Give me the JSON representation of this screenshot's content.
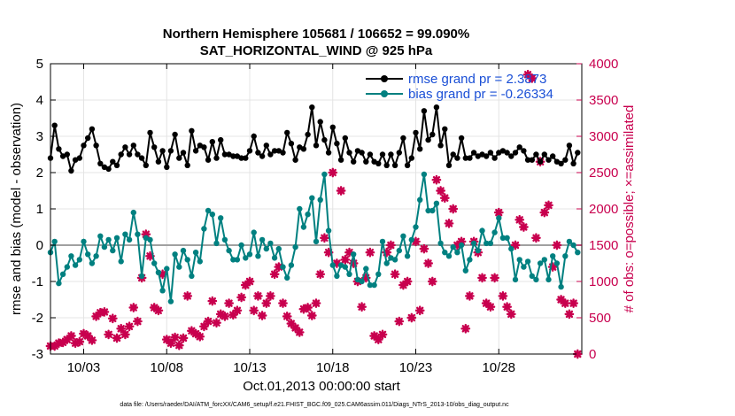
{
  "chart_data": {
    "type": "line",
    "title_line1": "Northern Hemisphere 105681 / 106652 = 99.090%",
    "title_line2": "SAT_HORIZONTAL_WIND @ 925 hPa",
    "xlabel": "Oct.01,2013 00:00:00 start",
    "ylabel": "rmse and bias (model - observation)",
    "ylabel_right": "# of obs: o=possible; ×=assimilated",
    "footer": "data file: /Users/raeder/DAI/ATM_forcXX/CAM6_setup/f.e21.FHIST_BGC.f09_025.CAM6assim.011/Diags_NTrS_2013-10/obs_diag_output.nc",
    "xlim": [
      1,
      33
    ],
    "ylim": [
      -3,
      5
    ],
    "ylim_right": [
      0,
      4000
    ],
    "x_ticks": [
      {
        "value": 3,
        "label": "10/03"
      },
      {
        "value": 8,
        "label": "10/08"
      },
      {
        "value": 13,
        "label": "10/13"
      },
      {
        "value": 18,
        "label": "10/18"
      },
      {
        "value": 23,
        "label": "10/23"
      },
      {
        "value": 28,
        "label": "10/28"
      }
    ],
    "y_ticks": [
      "-3",
      "-2",
      "-1",
      "0",
      "1",
      "2",
      "3",
      "4",
      "5"
    ],
    "y_ticks_right": [
      "0",
      "500",
      "1000",
      "1500",
      "2000",
      "2500",
      "3000",
      "3500",
      "4000"
    ],
    "grid": true,
    "legend_position": "top-right",
    "colors": {
      "rmse": "#000000",
      "bias": "#008080",
      "obs": "#c8004e",
      "zero_line": "#a0a0a0"
    },
    "series": [
      {
        "name": "rmse grand pr = 2.3873",
        "axis": "left",
        "x": [
          1.0,
          1.25,
          1.5,
          1.75,
          2.0,
          2.25,
          2.5,
          2.75,
          3.0,
          3.25,
          3.5,
          3.75,
          4.0,
          4.25,
          4.5,
          4.75,
          5.0,
          5.25,
          5.5,
          5.75,
          6.0,
          6.25,
          6.5,
          6.75,
          7.0,
          7.25,
          7.5,
          7.75,
          8.0,
          8.25,
          8.5,
          8.75,
          9.0,
          9.25,
          9.5,
          9.75,
          10.0,
          10.25,
          10.5,
          10.75,
          11.0,
          11.25,
          11.5,
          11.75,
          12.0,
          12.25,
          12.5,
          12.75,
          13.0,
          13.25,
          13.5,
          13.75,
          14.0,
          14.25,
          14.5,
          14.75,
          15.0,
          15.25,
          15.5,
          15.75,
          16.0,
          16.25,
          16.5,
          16.75,
          17.0,
          17.25,
          17.5,
          17.75,
          18.0,
          18.25,
          18.5,
          18.75,
          19.0,
          19.25,
          19.5,
          19.75,
          20.0,
          20.25,
          20.5,
          20.75,
          21.0,
          21.25,
          21.5,
          21.75,
          22.0,
          22.25,
          22.5,
          22.75,
          23.0,
          23.25,
          23.5,
          23.75,
          24.0,
          24.25,
          24.5,
          24.75,
          25.0,
          25.25,
          25.5,
          25.75,
          26.0,
          26.25,
          26.5,
          26.75,
          27.0,
          27.25,
          27.5,
          27.75,
          28.0,
          28.25,
          28.5,
          28.75,
          29.0,
          29.25,
          29.5,
          29.75,
          30.0,
          30.25,
          30.5,
          30.75,
          31.0,
          31.25,
          31.5,
          31.75,
          32.0,
          32.25,
          32.5,
          32.75
        ],
        "values": [
          2.4,
          3.3,
          2.65,
          2.45,
          2.5,
          2.05,
          2.35,
          2.4,
          2.75,
          2.95,
          3.2,
          2.75,
          2.25,
          2.15,
          2.1,
          2.3,
          2.2,
          2.5,
          2.7,
          2.5,
          2.75,
          2.5,
          2.4,
          2.2,
          3.1,
          2.7,
          2.3,
          2.6,
          2.15,
          2.6,
          3.05,
          2.4,
          2.55,
          2.2,
          3.15,
          2.6,
          2.75,
          2.7,
          2.35,
          2.85,
          2.4,
          2.9,
          2.5,
          2.5,
          2.45,
          2.45,
          2.4,
          2.4,
          2.6,
          3.0,
          2.55,
          2.45,
          2.75,
          2.5,
          2.6,
          2.6,
          2.55,
          3.1,
          2.8,
          2.35,
          2.7,
          2.65,
          3.05,
          3.8,
          2.75,
          3.4,
          2.9,
          2.55,
          3.25,
          2.8,
          2.35,
          2.95,
          2.55,
          2.3,
          2.6,
          2.55,
          2.3,
          2.5,
          2.3,
          2.25,
          2.5,
          2.2,
          2.5,
          2.2,
          2.55,
          2.95,
          2.2,
          2.4,
          3.1,
          2.65,
          3.7,
          2.9,
          3.05,
          3.8,
          2.75,
          3.2,
          2.2,
          2.5,
          2.4,
          2.95,
          2.4,
          2.4,
          2.55,
          2.45,
          2.5,
          2.45,
          2.55,
          2.4,
          2.55,
          2.6,
          2.55,
          2.45,
          2.55,
          2.7,
          2.6,
          2.35,
          2.35,
          2.5,
          2.3,
          2.5,
          2.35,
          2.45,
          2.3,
          2.25,
          2.35,
          2.75,
          2.25,
          2.55
        ]
      },
      {
        "name": "bias grand pr = -0.26334",
        "axis": "left",
        "x": [
          1.0,
          1.25,
          1.5,
          1.75,
          2.0,
          2.25,
          2.5,
          2.75,
          3.0,
          3.25,
          3.5,
          3.75,
          4.0,
          4.25,
          4.5,
          4.75,
          5.0,
          5.25,
          5.5,
          5.75,
          6.0,
          6.25,
          6.5,
          6.75,
          7.0,
          7.25,
          7.5,
          7.75,
          8.0,
          8.25,
          8.5,
          8.75,
          9.0,
          9.25,
          9.5,
          9.75,
          10.0,
          10.25,
          10.5,
          10.75,
          11.0,
          11.25,
          11.5,
          11.75,
          12.0,
          12.25,
          12.5,
          12.75,
          13.0,
          13.25,
          13.5,
          13.75,
          14.0,
          14.25,
          14.5,
          14.75,
          15.0,
          15.25,
          15.5,
          15.75,
          16.0,
          16.25,
          16.5,
          16.75,
          17.0,
          17.25,
          17.5,
          17.75,
          18.0,
          18.25,
          18.5,
          18.75,
          19.0,
          19.25,
          19.5,
          19.75,
          20.0,
          20.25,
          20.5,
          20.75,
          21.0,
          21.25,
          21.5,
          21.75,
          22.0,
          22.25,
          22.5,
          22.75,
          23.0,
          23.25,
          23.5,
          23.75,
          24.0,
          24.25,
          24.5,
          24.75,
          25.0,
          25.25,
          25.5,
          25.75,
          26.0,
          26.25,
          26.5,
          26.75,
          27.0,
          27.25,
          27.5,
          27.75,
          28.0,
          28.25,
          28.5,
          28.75,
          29.0,
          29.25,
          29.5,
          29.75,
          30.0,
          30.25,
          30.5,
          30.75,
          31.0,
          31.25,
          31.5,
          31.75,
          32.0,
          32.25,
          32.5,
          32.75
        ],
        "values": [
          -0.2,
          0.1,
          -1.05,
          -0.8,
          -0.6,
          -0.3,
          -0.55,
          -0.4,
          0.1,
          -0.25,
          -0.5,
          -0.3,
          0.25,
          -0.05,
          0.15,
          -0.15,
          0.2,
          -0.45,
          0.3,
          0.15,
          0.9,
          0.3,
          -0.85,
          0.2,
          0.15,
          -0.5,
          -0.75,
          -1.25,
          -0.65,
          -1.55,
          -0.25,
          -0.6,
          -0.15,
          -0.4,
          -0.85,
          -0.2,
          -0.45,
          0.45,
          0.95,
          0.85,
          0.05,
          0.75,
          0.15,
          -0.15,
          -0.4,
          -0.4,
          0.0,
          -0.35,
          -0.25,
          0.35,
          -0.3,
          0.15,
          -0.1,
          0.05,
          -0.35,
          -0.1,
          -0.6,
          -0.9,
          -0.55,
          -0.05,
          1.0,
          0.5,
          0.85,
          1.3,
          0.1,
          1.25,
          1.95,
          0.4,
          -0.55,
          -0.85,
          -0.55,
          -0.6,
          -0.8,
          -0.25,
          -0.95,
          -1.0,
          -0.65,
          -1.1,
          -1.1,
          -0.8,
          0.1,
          -0.5,
          -0.35,
          -0.4,
          -0.15,
          0.25,
          -0.3,
          0.15,
          0.5,
          1.25,
          1.95,
          0.95,
          0.95,
          1.15,
          0.05,
          -0.2,
          -0.3,
          -0.05,
          -0.2,
          0.0,
          -0.7,
          -0.4,
          0.05,
          -0.15,
          0.4,
          0.05,
          0.05,
          0.35,
          0.75,
          0.2,
          0.2,
          -0.1,
          -0.95,
          -0.4,
          -0.6,
          -0.45,
          -0.85,
          -0.95,
          -0.5,
          -0.4,
          -0.95,
          -0.3,
          -0.5,
          -1.15,
          -0.3,
          0.1,
          0.0,
          -0.2
        ]
      },
      {
        "name": "observations assimilated",
        "axis": "right",
        "x": [
          1.0,
          1.25,
          1.5,
          1.75,
          2.0,
          2.25,
          2.5,
          2.75,
          3.0,
          3.25,
          3.5,
          3.75,
          4.0,
          4.25,
          4.5,
          4.75,
          5.0,
          5.25,
          5.5,
          5.75,
          6.0,
          6.25,
          6.5,
          6.75,
          7.0,
          7.25,
          7.5,
          7.75,
          8.0,
          8.25,
          8.5,
          8.75,
          9.0,
          9.25,
          9.5,
          9.75,
          10.0,
          10.25,
          10.5,
          10.75,
          11.0,
          11.25,
          11.5,
          11.75,
          12.0,
          12.25,
          12.5,
          12.75,
          13.0,
          13.25,
          13.5,
          13.75,
          14.0,
          14.25,
          14.5,
          14.75,
          15.0,
          15.25,
          15.5,
          15.75,
          16.0,
          16.25,
          16.5,
          16.75,
          17.0,
          17.25,
          17.5,
          17.75,
          18.0,
          18.25,
          18.5,
          18.75,
          19.0,
          19.25,
          19.5,
          19.75,
          20.0,
          20.25,
          20.5,
          20.75,
          21.0,
          21.25,
          21.5,
          21.75,
          22.0,
          22.25,
          22.5,
          22.75,
          23.0,
          23.25,
          23.5,
          23.75,
          24.0,
          24.25,
          24.5,
          24.75,
          25.0,
          25.25,
          25.5,
          25.75,
          26.0,
          26.25,
          26.5,
          26.75,
          27.0,
          27.25,
          27.5,
          27.75,
          28.0,
          28.25,
          28.5,
          28.75,
          29.0,
          29.25,
          29.5,
          29.75,
          30.0,
          30.25,
          30.5,
          30.75,
          31.0,
          31.25,
          31.5,
          31.75,
          32.0,
          32.25,
          32.5,
          32.75
        ],
        "values": [
          110,
          110,
          150,
          160,
          200,
          250,
          150,
          170,
          280,
          250,
          190,
          520,
          570,
          580,
          270,
          490,
          220,
          350,
          270,
          380,
          640,
          450,
          1050,
          1650,
          1350,
          640,
          600,
          1100,
          200,
          150,
          230,
          120,
          220,
          800,
          320,
          280,
          240,
          380,
          450,
          730,
          430,
          550,
          520,
          700,
          540,
          600,
          780,
          950,
          1000,
          600,
          800,
          530,
          700,
          800,
          1100,
          1200,
          700,
          520,
          420,
          360,
          300,
          620,
          640,
          530,
          700,
          1100,
          1600,
          1400,
          2500,
          1250,
          2250,
          1300,
          1400,
          1250,
          1000,
          650,
          1050,
          1400,
          250,
          200,
          270,
          1400,
          1500,
          1100,
          450,
          950,
          1000,
          500,
          1550,
          600,
          1450,
          1250,
          1000,
          2400,
          2250,
          2150,
          1800,
          2000,
          1500,
          1550,
          350,
          800,
          1550,
          1400,
          1050,
          700,
          650,
          1050,
          1950,
          800,
          650,
          550,
          1500,
          1850,
          1750,
          3850,
          3800,
          1600,
          2650,
          1950,
          2050,
          1200,
          1500,
          750,
          700,
          550,
          700,
          0
        ]
      }
    ]
  }
}
